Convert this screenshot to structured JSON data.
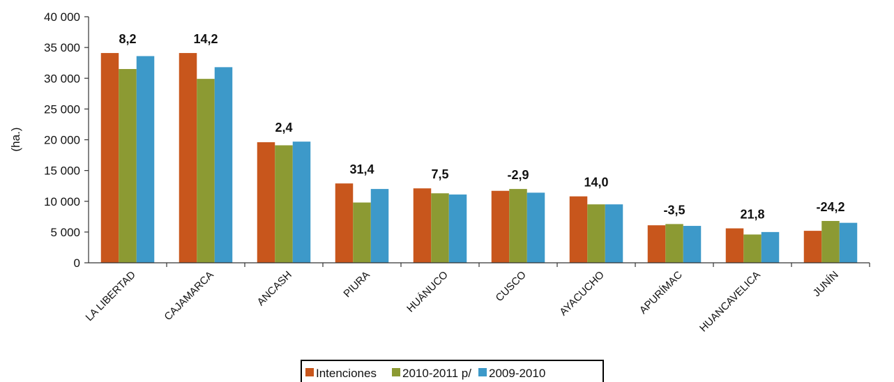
{
  "chart_data": {
    "type": "bar",
    "ylabel": "(ha.)",
    "ylim": [
      0,
      40000
    ],
    "yticks": [
      "0",
      "5 000",
      "10 000",
      "15 000",
      "20 000",
      "25 000",
      "30 000",
      "35 000",
      "40 000"
    ],
    "ytick_values": [
      0,
      5000,
      10000,
      15000,
      20000,
      25000,
      30000,
      35000,
      40000
    ],
    "grid": false,
    "legend_position": "bottom-center",
    "categories": [
      "LA LIBERTAD",
      "CAJAMARCA",
      "ANCASH",
      "PIURA",
      "HUÁNUCO",
      "CUSCO",
      "AYACUCHO",
      "APURÍMAC",
      "HUANCAVELICA",
      "JUNÍN"
    ],
    "series": [
      {
        "name": "Intenciones",
        "color": "#c8561c",
        "values": [
          34100,
          34100,
          19600,
          12900,
          12100,
          11700,
          10800,
          6100,
          5600,
          5200
        ]
      },
      {
        "name": "2010-2011 p/",
        "color": "#8c9a33",
        "values": [
          31500,
          29900,
          19100,
          9800,
          11300,
          12000,
          9500,
          6300,
          4600,
          6800
        ]
      },
      {
        "name": "2009-2010",
        "color": "#3d99c9",
        "values": [
          33600,
          31800,
          19700,
          12000,
          11100,
          11400,
          9500,
          6000,
          5000,
          6500
        ]
      }
    ],
    "annotations": [
      "8,2",
      "14,2",
      "2,4",
      "31,4",
      "7,5",
      "-2,9",
      "14,0",
      "-3,5",
      "21,8",
      "-24,2"
    ]
  }
}
